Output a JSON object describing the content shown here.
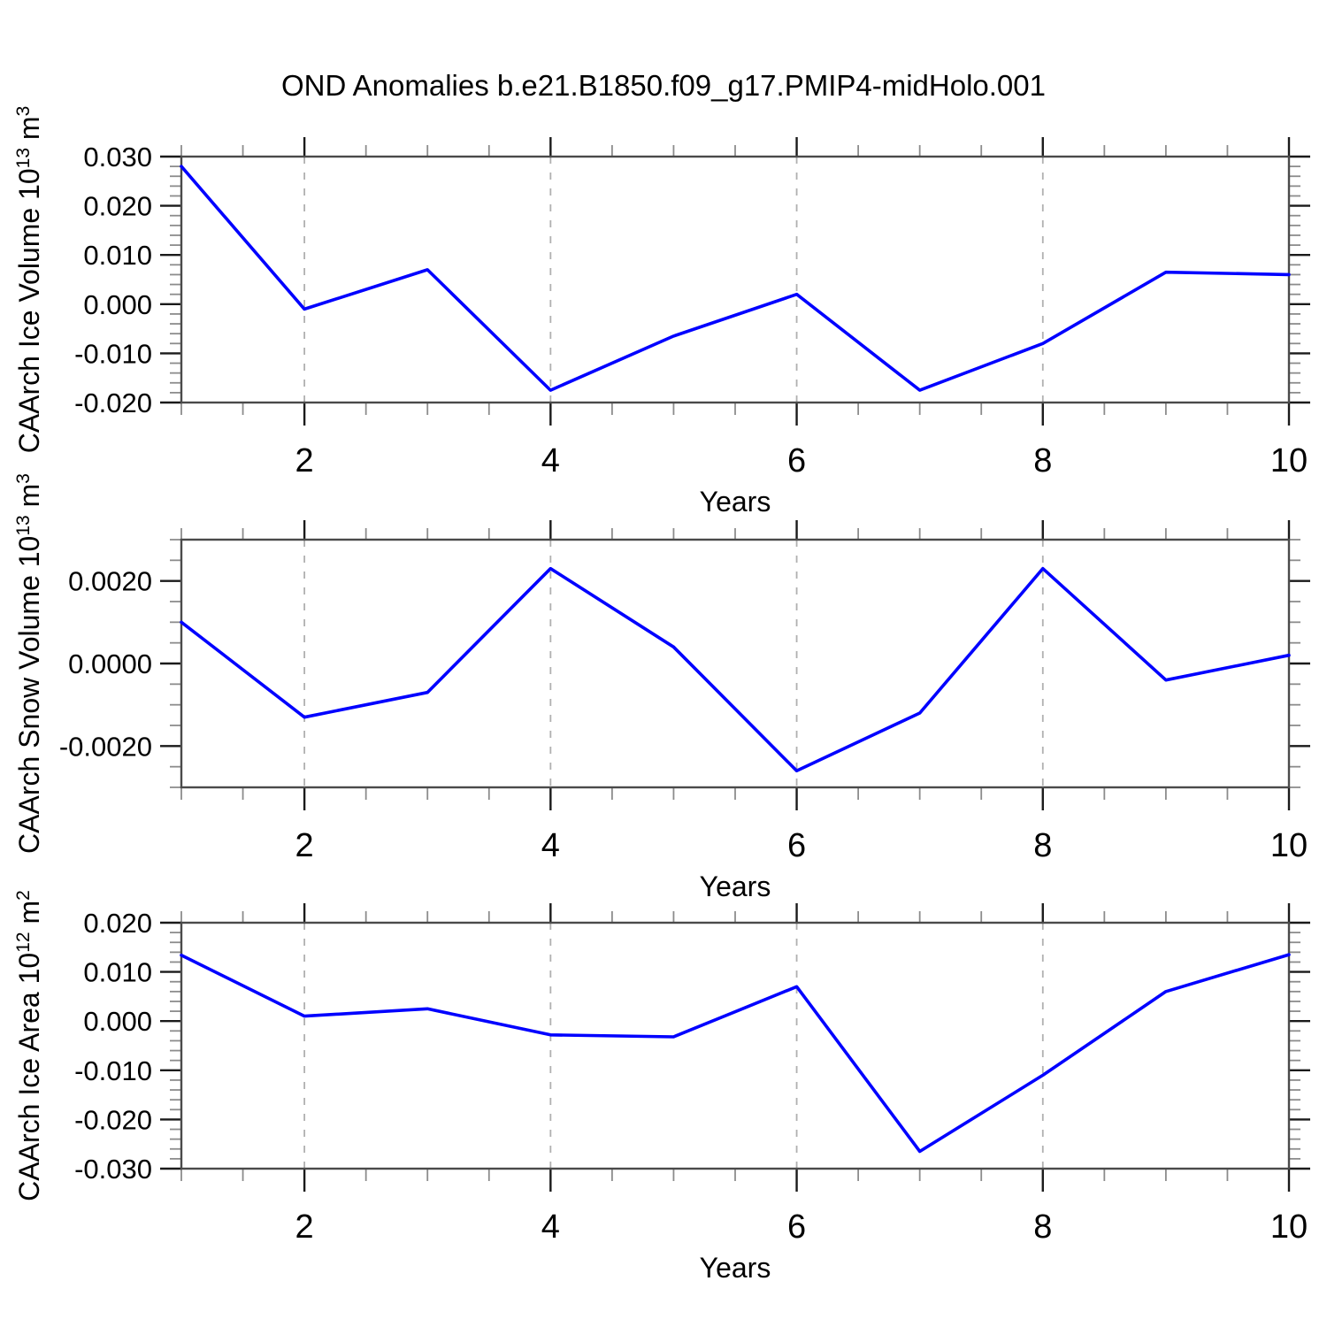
{
  "title": "OND Anomalies b.e21.B1850.f09_g17.PMIP4-midHolo.001",
  "colors": {
    "line": "#0000ff",
    "box": "#4a4a4a",
    "major_tick": "#1a1a1a",
    "minor_tick": "#8c8c8c",
    "grid": "#b0b0b0",
    "text": "#000000",
    "background": "#ffffff"
  },
  "chart_data": [
    {
      "type": "line",
      "name": "caarch-ice-volume",
      "ylabel_parts": [
        {
          "t": "CAArch Ice Volume 10"
        },
        {
          "t": "13",
          "sup": true
        },
        {
          "t": " m"
        },
        {
          "t": "3",
          "sup": true
        }
      ],
      "xlabel": "Years",
      "x": [
        1,
        2,
        3,
        4,
        5,
        6,
        7,
        8,
        9,
        10
      ],
      "y": [
        0.028,
        -0.001,
        0.007,
        -0.0175,
        -0.0065,
        0.002,
        -0.0175,
        -0.008,
        0.0065,
        0.006
      ],
      "xlim": [
        1,
        10
      ],
      "ylim": [
        -0.02,
        0.03
      ],
      "yticks": {
        "values": [
          0.03,
          0.02,
          0.01,
          0.0,
          -0.01,
          -0.02
        ],
        "labels": [
          "0.030",
          "0.020",
          "0.010",
          "0.000",
          "-0.010",
          "-0.020"
        ]
      },
      "ytick_minor_step": 0.002,
      "xticks": {
        "values": [
          2,
          4,
          6,
          8,
          10
        ],
        "labels": [
          "2",
          "4",
          "6",
          "8",
          "10"
        ]
      },
      "xtick_minor_step": 0.5,
      "grid_x": [
        2,
        4,
        6,
        8
      ],
      "grid_on": true,
      "legend": "none"
    },
    {
      "type": "line",
      "name": "caarch-snow-volume",
      "ylabel_parts": [
        {
          "t": "CAArch Snow Volume 10"
        },
        {
          "t": "13",
          "sup": true
        },
        {
          "t": " m"
        },
        {
          "t": "3",
          "sup": true
        }
      ],
      "xlabel": "Years",
      "x": [
        1,
        2,
        3,
        4,
        5,
        6,
        7,
        8,
        9,
        10
      ],
      "y": [
        0.001,
        -0.0013,
        -0.0007,
        0.0023,
        0.0004,
        -0.0026,
        -0.0012,
        0.0023,
        -0.0004,
        0.0002
      ],
      "xlim": [
        1,
        10
      ],
      "ylim": [
        -0.003,
        0.003
      ],
      "yticks": {
        "values": [
          0.002,
          0.0,
          -0.002
        ],
        "labels": [
          "0.0020",
          "0.0000",
          "-0.0020"
        ]
      },
      "ytick_minor_step": 0.0005,
      "xticks": {
        "values": [
          2,
          4,
          6,
          8,
          10
        ],
        "labels": [
          "2",
          "4",
          "6",
          "8",
          "10"
        ]
      },
      "xtick_minor_step": 0.5,
      "grid_x": [
        2,
        4,
        6,
        8
      ],
      "grid_on": true,
      "legend": "none"
    },
    {
      "type": "line",
      "name": "caarch-ice-area",
      "ylabel_parts": [
        {
          "t": "CAArch Ice Area 10"
        },
        {
          "t": "12",
          "sup": true
        },
        {
          "t": " m"
        },
        {
          "t": "2",
          "sup": true
        }
      ],
      "xlabel": "Years",
      "x": [
        1,
        2,
        3,
        4,
        5,
        6,
        7,
        8,
        9,
        10
      ],
      "y": [
        0.0134,
        0.001,
        0.0025,
        -0.0028,
        -0.0032,
        0.007,
        -0.0265,
        -0.011,
        0.006,
        0.0135
      ],
      "xlim": [
        1,
        10
      ],
      "ylim": [
        -0.03,
        0.02
      ],
      "yticks": {
        "values": [
          0.02,
          0.01,
          0.0,
          -0.01,
          -0.02,
          -0.03
        ],
        "labels": [
          "0.020",
          "0.010",
          "0.000",
          "-0.010",
          "-0.020",
          "-0.030"
        ]
      },
      "ytick_minor_step": 0.002,
      "xticks": {
        "values": [
          2,
          4,
          6,
          8,
          10
        ],
        "labels": [
          "2",
          "4",
          "6",
          "8",
          "10"
        ]
      },
      "xtick_minor_step": 0.5,
      "grid_x": [
        2,
        4,
        6,
        8
      ],
      "grid_on": true,
      "legend": "none"
    }
  ]
}
